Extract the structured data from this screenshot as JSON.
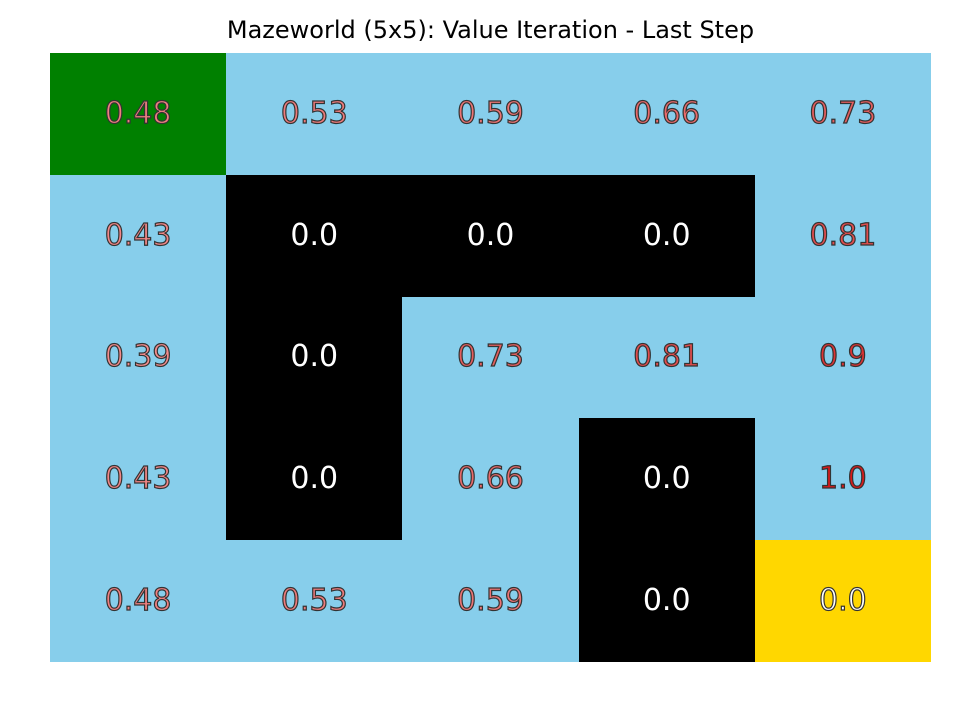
{
  "title": "Mazeworld (5x5): Value Iteration - Last Step",
  "colors": {
    "open": "#87CEEB",
    "wall": "#000000",
    "start": "#008000",
    "goal": "#FFD700",
    "wall_text": "#FFFFFF",
    "goal_text": "#FFFFFF"
  },
  "grid": [
    [
      {
        "kind": "start",
        "value": "0.48",
        "text_color": "#F08080"
      },
      {
        "kind": "open",
        "value": "0.53",
        "text_color": "#EE7B7B"
      },
      {
        "kind": "open",
        "value": "0.59",
        "text_color": "#EC7474"
      },
      {
        "kind": "open",
        "value": "0.66",
        "text_color": "#E96A6A"
      },
      {
        "kind": "open",
        "value": "0.73",
        "text_color": "#E55E5E"
      }
    ],
    [
      {
        "kind": "open",
        "value": "0.43",
        "text_color": "#F28686"
      },
      {
        "kind": "wall",
        "value": "0.0",
        "text_color": "#FFFFFF"
      },
      {
        "kind": "wall",
        "value": "0.0",
        "text_color": "#FFFFFF"
      },
      {
        "kind": "wall",
        "value": "0.0",
        "text_color": "#FFFFFF"
      },
      {
        "kind": "open",
        "value": "0.81",
        "text_color": "#E24D4D"
      }
    ],
    [
      {
        "kind": "open",
        "value": "0.39",
        "text_color": "#F48C8C"
      },
      {
        "kind": "wall",
        "value": "0.0",
        "text_color": "#FFFFFF"
      },
      {
        "kind": "open",
        "value": "0.73",
        "text_color": "#E55E5E"
      },
      {
        "kind": "open",
        "value": "0.81",
        "text_color": "#E24D4D"
      },
      {
        "kind": "open",
        "value": "0.9",
        "text_color": "#DD3333"
      }
    ],
    [
      {
        "kind": "open",
        "value": "0.43",
        "text_color": "#F28686"
      },
      {
        "kind": "wall",
        "value": "0.0",
        "text_color": "#FFFFFF"
      },
      {
        "kind": "open",
        "value": "0.66",
        "text_color": "#E96A6A"
      },
      {
        "kind": "wall",
        "value": "0.0",
        "text_color": "#FFFFFF"
      },
      {
        "kind": "open",
        "value": "1.0",
        "text_color": "#D91A1A"
      }
    ],
    [
      {
        "kind": "open",
        "value": "0.48",
        "text_color": "#F08080"
      },
      {
        "kind": "open",
        "value": "0.53",
        "text_color": "#EE7B7B"
      },
      {
        "kind": "open",
        "value": "0.59",
        "text_color": "#EC7474"
      },
      {
        "kind": "wall",
        "value": "0.0",
        "text_color": "#FFFFFF"
      },
      {
        "kind": "goal",
        "value": "0.0",
        "text_color": "#FFFFFF"
      }
    ]
  ]
}
